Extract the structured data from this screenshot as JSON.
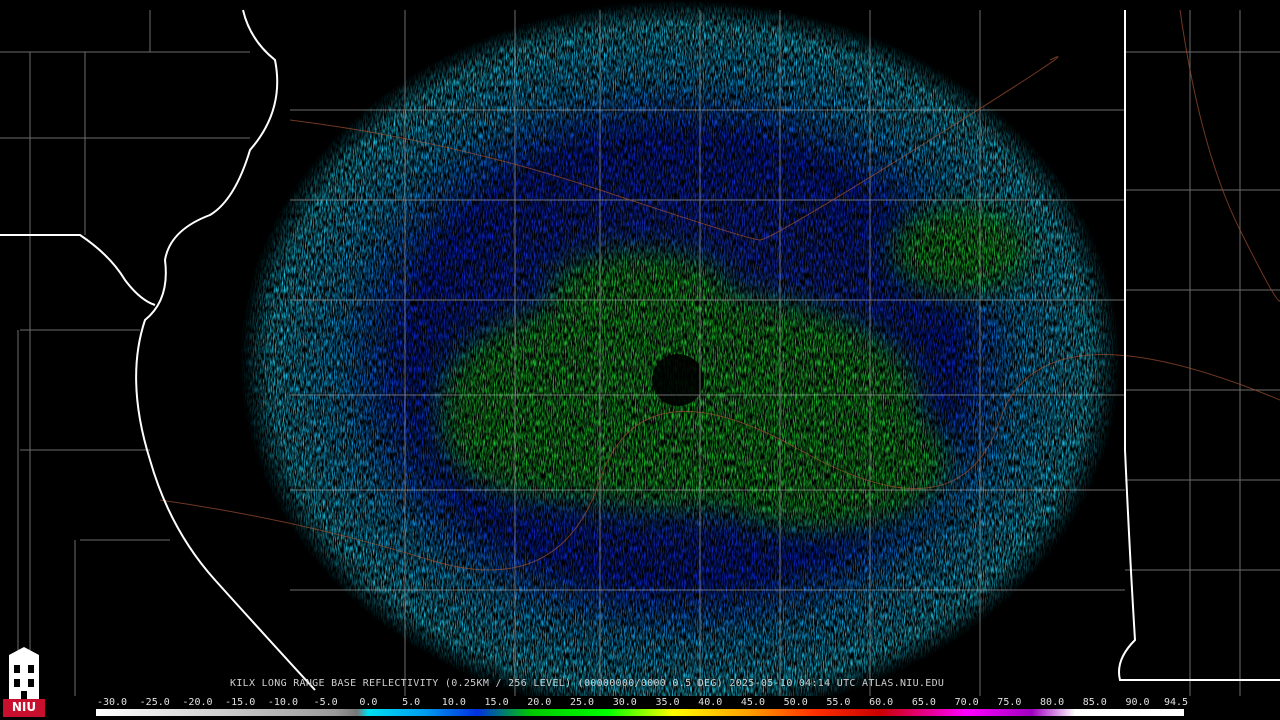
{
  "header": "KILX LONG RANGE BASE REFLECTIVITY (0.25KM / 256 LEVEL) (00000000/0000 0.5 DEG) 2025-05-10 04:14 UTC  ATLAS.NIU.EDU",
  "logo": "NIU",
  "colorbar": {
    "ticks": [
      {
        "value": -30,
        "label": "-30.0"
      },
      {
        "value": -25,
        "label": "-25.0"
      },
      {
        "value": -20,
        "label": "-20.0"
      },
      {
        "value": -15,
        "label": "-15.0"
      },
      {
        "value": -10,
        "label": "-10.0"
      },
      {
        "value": -5,
        "label": "-5.0"
      },
      {
        "value": 0,
        "label": "0.0"
      },
      {
        "value": 5,
        "label": "5.0"
      },
      {
        "value": 10,
        "label": "10.0"
      },
      {
        "value": 15,
        "label": "15.0"
      },
      {
        "value": 20,
        "label": "20.0"
      },
      {
        "value": 25,
        "label": "25.0"
      },
      {
        "value": 30,
        "label": "30.0"
      },
      {
        "value": 35,
        "label": "35.0"
      },
      {
        "value": 40,
        "label": "40.0"
      },
      {
        "value": 45,
        "label": "45.0"
      },
      {
        "value": 50,
        "label": "50.0"
      },
      {
        "value": 55,
        "label": "55.0"
      },
      {
        "value": 60,
        "label": "60.0"
      },
      {
        "value": 65,
        "label": "65.0"
      },
      {
        "value": 70,
        "label": "70.0"
      },
      {
        "value": 75,
        "label": "75.0"
      },
      {
        "value": 80,
        "label": "80.0"
      },
      {
        "value": 85,
        "label": "85.0"
      },
      {
        "value": 90,
        "label": "90.0"
      },
      {
        "value": 94.5,
        "label": "94.5"
      }
    ]
  }
}
